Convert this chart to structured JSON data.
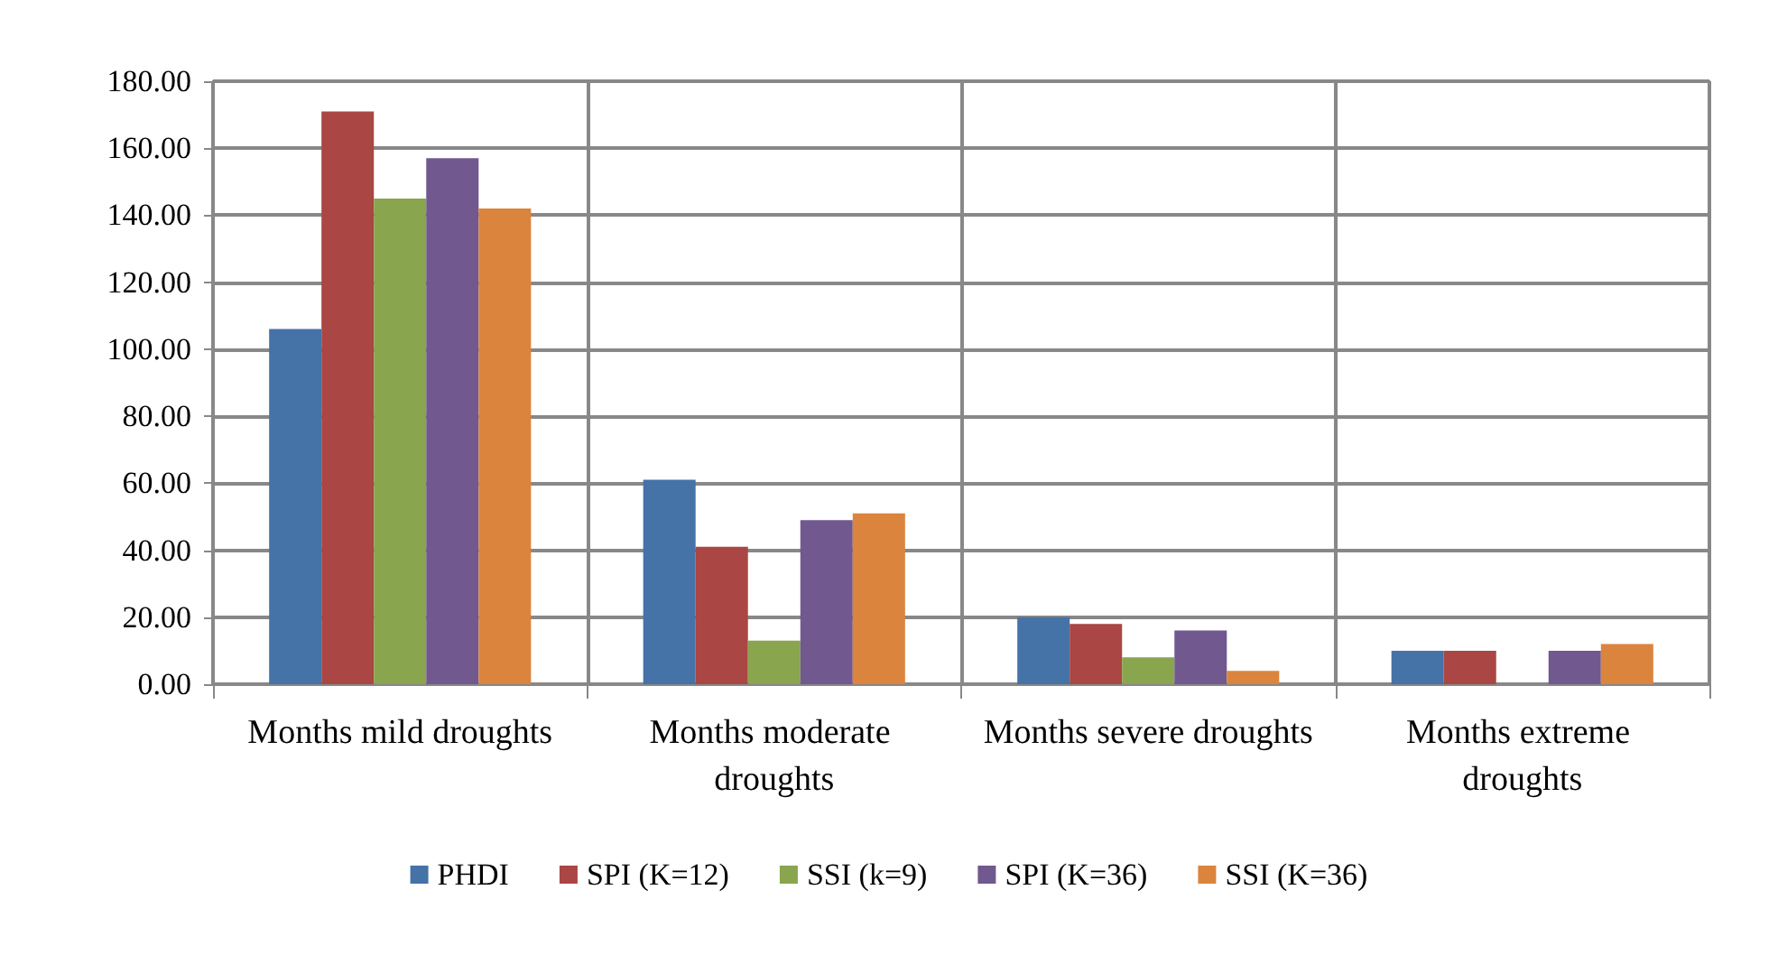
{
  "chart_data": {
    "type": "bar",
    "categories": [
      "Months mild droughts",
      "Months moderate droughts",
      "Months severe droughts",
      "Months extreme droughts"
    ],
    "series": [
      {
        "name": "PHDI",
        "color": "#4572a7",
        "values": [
          106,
          61,
          20,
          10
        ]
      },
      {
        "name": "SPI (K=12)",
        "color": "#aa4643",
        "values": [
          171,
          41,
          18,
          10
        ]
      },
      {
        "name": "SSI (k=9)",
        "color": "#89a54e",
        "values": [
          145,
          13,
          8,
          0
        ]
      },
      {
        "name": "SPI (K=36)",
        "color": "#71588f",
        "values": [
          157,
          49,
          16,
          10
        ]
      },
      {
        "name": "SSI (K=36)",
        "color": "#db843d",
        "values": [
          142,
          51,
          4,
          12
        ]
      }
    ],
    "ylim": [
      0,
      180
    ],
    "yticks": [
      {
        "value": 0,
        "label": "0.00"
      },
      {
        "value": 20,
        "label": "20.00"
      },
      {
        "value": 40,
        "label": "40.00"
      },
      {
        "value": 60,
        "label": "60.00"
      },
      {
        "value": 80,
        "label": "80.00"
      },
      {
        "value": 100,
        "label": "100.00"
      },
      {
        "value": 120,
        "label": "120.00"
      },
      {
        "value": 140,
        "label": "140.00"
      },
      {
        "value": 160,
        "label": "160.00"
      },
      {
        "value": 180,
        "label": "180.00"
      }
    ],
    "grid": true,
    "legend": "bottom"
  }
}
